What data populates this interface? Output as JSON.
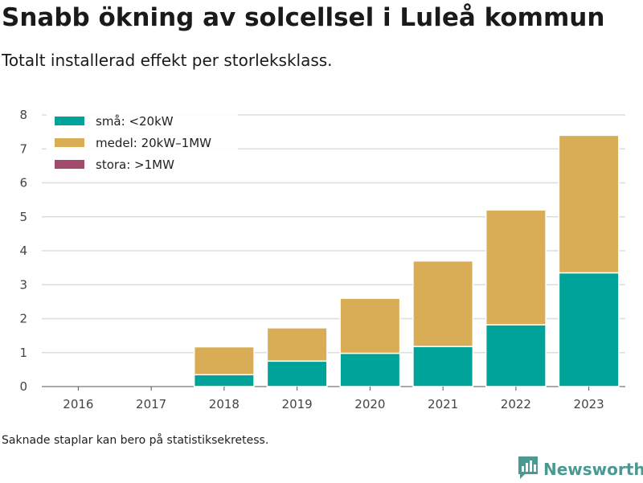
{
  "header": {
    "title": "Snabb ökning av solcellsel i Luleå kommun",
    "subtitle": "Totalt installerad effekt per storleksklass."
  },
  "footer": {
    "note": "Saknade staplar kan bero på statistiksekretess.",
    "brand": "Newsworthy",
    "brand_icon": "bar-chart-logo-icon"
  },
  "colors": {
    "small": "#00a39a",
    "medium": "#d9ad56",
    "large": "#a34a6c",
    "grid": "#dddddd",
    "brand": "#4a9a91"
  },
  "chart_data": {
    "type": "bar",
    "stacked": true,
    "categories": [
      "2016",
      "2017",
      "2018",
      "2019",
      "2020",
      "2021",
      "2022",
      "2023"
    ],
    "series": [
      {
        "name": "små: <20kW",
        "color": "#00a39a",
        "values": [
          0,
          0,
          0.35,
          0.75,
          0.98,
          1.18,
          1.82,
          3.35
        ]
      },
      {
        "name": "medel: 20kW–1MW",
        "color": "#d9ad56",
        "values": [
          0,
          0,
          0.82,
          0.98,
          1.62,
          2.52,
          3.38,
          4.05
        ]
      },
      {
        "name": "stora: >1MW",
        "color": "#a34a6c",
        "values": [
          0,
          0,
          0,
          0,
          0,
          0,
          0,
          0
        ]
      }
    ],
    "yticks": [
      0,
      1,
      2,
      3,
      4,
      5,
      6,
      7,
      8
    ],
    "ylim": [
      0,
      8
    ],
    "grid": true,
    "legend_position": "top-left"
  }
}
